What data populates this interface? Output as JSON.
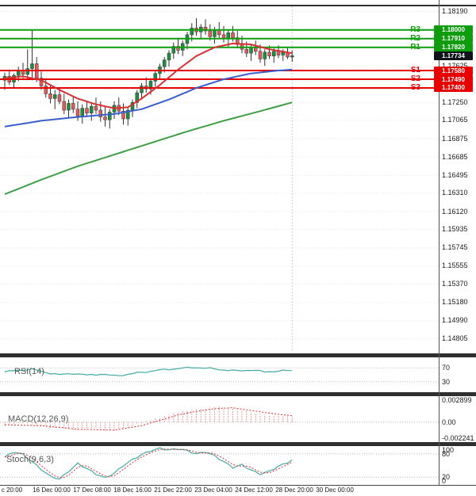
{
  "price_axis": {
    "labels": [
      "1.18190",
      "1.17625",
      "1.17250",
      "1.17065",
      "1.16875",
      "1.16685",
      "1.16495",
      "1.16310",
      "1.16120",
      "1.15935",
      "1.15745",
      "1.15555",
      "1.15370",
      "1.15180",
      "1.14990",
      "1.14805"
    ]
  },
  "levels": {
    "resistance": [
      {
        "name": "R3",
        "label": "1.18000"
      },
      {
        "name": "R2",
        "label": "1.17910"
      },
      {
        "name": "R1",
        "label": "1.17820"
      }
    ],
    "support": [
      {
        "name": "S1",
        "label": "1.17580"
      },
      {
        "name": "S2",
        "label": "1.17490"
      },
      {
        "name": "S3",
        "label": "1.17400"
      }
    ],
    "current_price": "1.17734"
  },
  "time_axis": [
    "c 20:00",
    "16 Dec 00:00",
    "17 Dec 08:00",
    "18 Dec 16:00",
    "21 Dec 22:00",
    "23 Dec 04:00",
    "24 Dec 12:00",
    "28 Dec 20:00",
    "30 Dec 00:00"
  ],
  "indicators": {
    "rsi": {
      "label": "RSI(14)",
      "axis": [
        {
          "text": "70",
          "value": 70
        },
        {
          "text": "30",
          "value": 30
        }
      ]
    },
    "macd": {
      "label": "MACD(12,26,9)",
      "axis": [
        {
          "text": "0.002899",
          "value": 0.002899
        },
        {
          "text": "0.00",
          "value": 0
        },
        {
          "text": "-0.002241",
          "value": -0.002241
        }
      ]
    },
    "stoch": {
      "label": "Stoch(9,6,3)",
      "axis": [
        {
          "text": "100",
          "value": 100
        },
        {
          "text": "80",
          "value": 80
        },
        {
          "text": "20",
          "value": 20
        },
        {
          "text": "0",
          "value": 0
        }
      ]
    }
  },
  "colors": {
    "up_candle": "#1e8e3e",
    "down_candle": "#e05b5b",
    "candle_border": "#333333",
    "wick": "#333333",
    "resistance": "#0f9d0f",
    "support": "#e60000",
    "current_price_bg": "#10131c",
    "ma_red": "#d63031",
    "ma_blue": "#3a5fcd",
    "ma_green": "#3f9e46",
    "indicator_teal": "#45aaa5",
    "signal_red": "#d63031",
    "histogram_red": "#e08080",
    "grid": "#e6e6e6",
    "grid_dotted": "#bbbbbb"
  },
  "chart_data": [
    {
      "type": "candlestick",
      "name": "price-main",
      "ylim": [
        1.14653,
        1.1831
      ],
      "levels": {
        "resistance": [
          1.18,
          1.1791,
          1.1782
        ],
        "support": [
          1.1758,
          1.1749,
          1.174
        ],
        "current": 1.17734
      },
      "candles": [
        [
          1.1748,
          1.1756,
          1.1738,
          1.1752
        ],
        [
          1.1752,
          1.1759,
          1.1743,
          1.1746
        ],
        [
          1.1746,
          1.1755,
          1.174,
          1.1753
        ],
        [
          1.1753,
          1.1762,
          1.1747,
          1.1758
        ],
        [
          1.1758,
          1.1766,
          1.175,
          1.1754
        ],
        [
          1.1754,
          1.178,
          1.1748,
          1.176
        ],
        [
          1.176,
          1.18,
          1.1748,
          1.1765
        ],
        [
          1.1765,
          1.1772,
          1.1746,
          1.175
        ],
        [
          1.175,
          1.1757,
          1.1738,
          1.1742
        ],
        [
          1.1742,
          1.175,
          1.173,
          1.1734
        ],
        [
          1.1734,
          1.1743,
          1.1724,
          1.1729
        ],
        [
          1.1729,
          1.1738,
          1.1718,
          1.1733
        ],
        [
          1.1733,
          1.174,
          1.1723,
          1.1726
        ],
        [
          1.1726,
          1.1734,
          1.1713,
          1.1717
        ],
        [
          1.1717,
          1.1728,
          1.1709,
          1.1724
        ],
        [
          1.1724,
          1.1731,
          1.1714,
          1.1718
        ],
        [
          1.1718,
          1.1726,
          1.1706,
          1.1711
        ],
        [
          1.1711,
          1.1723,
          1.1703,
          1.1719
        ],
        [
          1.1719,
          1.1727,
          1.171,
          1.1714
        ],
        [
          1.1714,
          1.1725,
          1.1706,
          1.1721
        ],
        [
          1.1721,
          1.173,
          1.1713,
          1.1717
        ],
        [
          1.1717,
          1.1726,
          1.1705,
          1.171
        ],
        [
          1.171,
          1.1721,
          1.17,
          1.1707
        ],
        [
          1.1707,
          1.1718,
          1.1698,
          1.1715
        ],
        [
          1.1715,
          1.1726,
          1.1708,
          1.1722
        ],
        [
          1.1722,
          1.173,
          1.1712,
          1.1716
        ],
        [
          1.1716,
          1.1724,
          1.1702,
          1.1708
        ],
        [
          1.1708,
          1.172,
          1.1701,
          1.1717
        ],
        [
          1.1717,
          1.1728,
          1.171,
          1.1725
        ],
        [
          1.1725,
          1.1738,
          1.1719,
          1.1735
        ],
        [
          1.1735,
          1.1745,
          1.1728,
          1.1742
        ],
        [
          1.1742,
          1.1751,
          1.1735,
          1.1739
        ],
        [
          1.1739,
          1.175,
          1.1733,
          1.1747
        ],
        [
          1.1747,
          1.1758,
          1.1741,
          1.1755
        ],
        [
          1.1755,
          1.1765,
          1.1749,
          1.1762
        ],
        [
          1.1762,
          1.1772,
          1.1756,
          1.1769
        ],
        [
          1.1769,
          1.1779,
          1.1762,
          1.1776
        ],
        [
          1.1776,
          1.1787,
          1.177,
          1.1783
        ],
        [
          1.1783,
          1.1792,
          1.1775,
          1.1779
        ],
        [
          1.1779,
          1.1789,
          1.1773,
          1.1786
        ],
        [
          1.1786,
          1.1798,
          1.178,
          1.1795
        ],
        [
          1.1795,
          1.1807,
          1.1788,
          1.1802
        ],
        [
          1.1802,
          1.1812,
          1.1794,
          1.1798
        ],
        [
          1.1798,
          1.1806,
          1.179,
          1.1803
        ],
        [
          1.1803,
          1.1811,
          1.1795,
          1.1799
        ],
        [
          1.1799,
          1.1806,
          1.1789,
          1.1793
        ],
        [
          1.1793,
          1.1803,
          1.1786,
          1.18
        ],
        [
          1.18,
          1.1808,
          1.1791,
          1.1795
        ],
        [
          1.1795,
          1.1804,
          1.1787,
          1.1791
        ],
        [
          1.1791,
          1.18,
          1.1782,
          1.1797
        ],
        [
          1.1797,
          1.1804,
          1.1788,
          1.1792
        ],
        [
          1.1792,
          1.1799,
          1.1781,
          1.1785
        ],
        [
          1.1785,
          1.1794,
          1.1776,
          1.178
        ],
        [
          1.178,
          1.1788,
          1.1772,
          1.1776
        ],
        [
          1.1776,
          1.1785,
          1.1768,
          1.1782
        ],
        [
          1.1782,
          1.1789,
          1.1774,
          1.1778
        ],
        [
          1.1778,
          1.1785,
          1.1766,
          1.177
        ],
        [
          1.177,
          1.178,
          1.1763,
          1.1777
        ],
        [
          1.1777,
          1.1784,
          1.177,
          1.1773
        ],
        [
          1.1773,
          1.1781,
          1.1766,
          1.1778
        ],
        [
          1.1778,
          1.1784,
          1.1771,
          1.1774
        ],
        [
          1.1774,
          1.178,
          1.1768,
          1.1777
        ],
        [
          1.1777,
          1.1782,
          1.177,
          1.1772
        ],
        [
          1.1772,
          1.1779,
          1.1767,
          1.17734
        ]
      ],
      "overlays": [
        {
          "name": "ma-red",
          "color_key": "ma_red",
          "width": 2,
          "points": [
            [
              0,
              1.175
            ],
            [
              4,
              1.1752
            ],
            [
              8,
              1.1748
            ],
            [
              12,
              1.1738
            ],
            [
              16,
              1.1729
            ],
            [
              20,
              1.1723
            ],
            [
              24,
              1.1719
            ],
            [
              27,
              1.172
            ],
            [
              30,
              1.1729
            ],
            [
              34,
              1.1743
            ],
            [
              38,
              1.1759
            ],
            [
              42,
              1.1773
            ],
            [
              46,
              1.1782
            ],
            [
              50,
              1.1786
            ],
            [
              54,
              1.1785
            ],
            [
              58,
              1.178
            ],
            [
              63,
              1.1776
            ]
          ]
        },
        {
          "name": "ma-blue",
          "color_key": "ma_blue",
          "width": 2,
          "points": [
            [
              0,
              1.17
            ],
            [
              8,
              1.1706
            ],
            [
              16,
              1.171
            ],
            [
              24,
              1.1713
            ],
            [
              30,
              1.1718
            ],
            [
              36,
              1.1728
            ],
            [
              42,
              1.174
            ],
            [
              48,
              1.1749
            ],
            [
              54,
              1.1755
            ],
            [
              60,
              1.1758
            ],
            [
              63,
              1.1759
            ]
          ]
        },
        {
          "name": "ma-green",
          "color_key": "ma_green",
          "width": 2,
          "points": [
            [
              0,
              1.163
            ],
            [
              8,
              1.1645
            ],
            [
              16,
              1.1659
            ],
            [
              24,
              1.1671
            ],
            [
              32,
              1.1683
            ],
            [
              40,
              1.1695
            ],
            [
              48,
              1.1706
            ],
            [
              56,
              1.1716
            ],
            [
              63,
              1.1725
            ]
          ]
        }
      ]
    },
    {
      "type": "line",
      "name": "rsi",
      "ylim": [
        0,
        100
      ],
      "grid_levels": [
        70,
        30
      ],
      "series": [
        {
          "name": "rsi-line",
          "color_key": "indicator_teal",
          "points": [
            [
              0,
              58
            ],
            [
              3,
              63
            ],
            [
              6,
              66
            ],
            [
              9,
              57
            ],
            [
              12,
              50
            ],
            [
              15,
              54
            ],
            [
              18,
              49
            ],
            [
              21,
              52
            ],
            [
              24,
              47
            ],
            [
              27,
              51
            ],
            [
              30,
              57
            ],
            [
              33,
              62
            ],
            [
              36,
              66
            ],
            [
              39,
              69
            ],
            [
              42,
              71
            ],
            [
              45,
              68
            ],
            [
              48,
              64
            ],
            [
              51,
              61
            ],
            [
              54,
              64
            ],
            [
              57,
              58
            ],
            [
              60,
              61
            ],
            [
              63,
              62
            ]
          ]
        }
      ]
    },
    {
      "type": "macd",
      "name": "macd",
      "ylim": [
        -0.002241,
        0.002899
      ],
      "grid_levels": [
        0
      ],
      "histogram_points": [
        [
          0,
          -0.0004
        ],
        [
          4,
          -0.0002
        ],
        [
          8,
          -0.0005
        ],
        [
          12,
          -0.0008
        ],
        [
          16,
          -0.0009
        ],
        [
          20,
          -0.0008
        ],
        [
          24,
          -0.001
        ],
        [
          28,
          -0.0005
        ],
        [
          30,
          -0.0001
        ],
        [
          32,
          0.0003
        ],
        [
          35,
          0.0007
        ],
        [
          38,
          0.0011
        ],
        [
          41,
          0.0014
        ],
        [
          44,
          0.0016
        ],
        [
          47,
          0.0017
        ],
        [
          50,
          0.0015
        ],
        [
          53,
          0.0012
        ],
        [
          56,
          0.0009
        ],
        [
          59,
          0.0007
        ],
        [
          63,
          0.0006
        ]
      ],
      "signal_points": [
        [
          0,
          -0.0003
        ],
        [
          8,
          -0.0004
        ],
        [
          16,
          -0.0008
        ],
        [
          24,
          -0.0009
        ],
        [
          30,
          -0.0004
        ],
        [
          34,
          0.0002
        ],
        [
          38,
          0.0008
        ],
        [
          42,
          0.0012
        ],
        [
          46,
          0.0015
        ],
        [
          50,
          0.0016
        ],
        [
          54,
          0.0013
        ],
        [
          58,
          0.001
        ],
        [
          63,
          0.0007
        ]
      ]
    },
    {
      "type": "stoch",
      "name": "stochastic",
      "ylim": [
        0,
        100
      ],
      "grid_levels": [
        80,
        20
      ],
      "main_points": [
        [
          0,
          72
        ],
        [
          2,
          85
        ],
        [
          4,
          78
        ],
        [
          6,
          60
        ],
        [
          8,
          40
        ],
        [
          10,
          22
        ],
        [
          12,
          15
        ],
        [
          14,
          35
        ],
        [
          16,
          55
        ],
        [
          18,
          42
        ],
        [
          20,
          28
        ],
        [
          22,
          18
        ],
        [
          24,
          30
        ],
        [
          26,
          50
        ],
        [
          28,
          65
        ],
        [
          30,
          78
        ],
        [
          32,
          88
        ],
        [
          34,
          94
        ],
        [
          36,
          90
        ],
        [
          38,
          93
        ],
        [
          40,
          88
        ],
        [
          42,
          80
        ],
        [
          44,
          85
        ],
        [
          46,
          75
        ],
        [
          48,
          60
        ],
        [
          50,
          45
        ],
        [
          52,
          52
        ],
        [
          54,
          38
        ],
        [
          56,
          28
        ],
        [
          58,
          35
        ],
        [
          60,
          48
        ],
        [
          62,
          58
        ],
        [
          63,
          64
        ]
      ]
    }
  ]
}
